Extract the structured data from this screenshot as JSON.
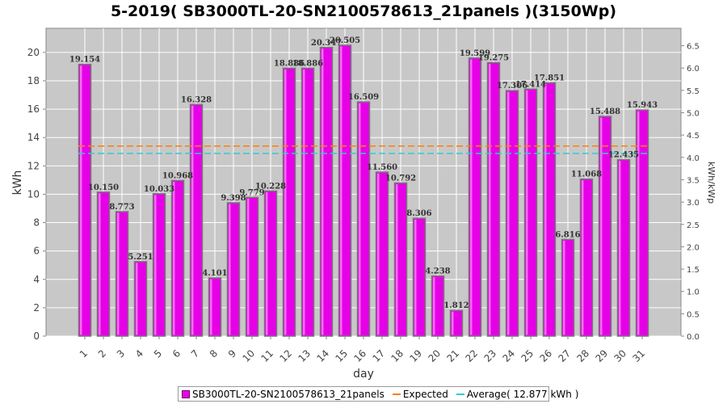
{
  "chart_data": {
    "type": "bar",
    "title": "5-2019( SB3000TL-20-SN2100578613_21panels )(3150Wp)",
    "xlabel": "day",
    "ylabel": "kWh",
    "y2label": "kWh/kWp",
    "ylim": [
      0,
      21.7
    ],
    "y2lim": [
      0,
      6.89
    ],
    "yticks": [
      0,
      2,
      4,
      6,
      8,
      10,
      12,
      14,
      16,
      18,
      20
    ],
    "y2ticks": [
      "0.0",
      "0.5",
      "1.0",
      "1.5",
      "2.0",
      "2.5",
      "3.0",
      "3.5",
      "4.0",
      "4.5",
      "5.0",
      "5.5",
      "6.0",
      "6.5"
    ],
    "grid": true,
    "legend_position": "bottom",
    "categories": [
      "1",
      "2",
      "3",
      "4",
      "5",
      "6",
      "7",
      "8",
      "9",
      "10",
      "11",
      "12",
      "13",
      "14",
      "15",
      "16",
      "17",
      "18",
      "19",
      "20",
      "21",
      "22",
      "23",
      "24",
      "25",
      "26",
      "27",
      "28",
      "29",
      "30",
      "31"
    ],
    "series": [
      {
        "name": "SB3000TL-20-SN2100578613_21panels",
        "color": "#e600e6",
        "values": [
          19.154,
          10.15,
          8.773,
          5.251,
          10.033,
          10.968,
          16.328,
          4.101,
          9.398,
          9.779,
          10.228,
          18.886,
          18.886,
          20.347,
          20.505,
          16.509,
          11.56,
          10.792,
          8.306,
          4.238,
          1.812,
          19.599,
          19.275,
          17.306,
          17.414,
          17.851,
          6.816,
          11.068,
          15.488,
          12.435,
          15.943
        ],
        "labels": [
          "19.154",
          "10.150",
          "8.773",
          "5.251",
          "10.033",
          "10.968",
          "16.328",
          "4.101",
          "9.398",
          "9.779",
          "10.228",
          "18.886",
          "18.886",
          "20.347",
          "20.505",
          "16.509",
          "11.560",
          "10.792",
          "8.306",
          "4.238",
          "1.812",
          "19.599",
          "19.275",
          "17.306",
          "17.414",
          "17.851",
          "6.816",
          "11.068",
          "15.488",
          "12.435",
          "15.943"
        ]
      }
    ],
    "lines": [
      {
        "name": "Expected",
        "value": 13.4,
        "color": "#ff8000"
      },
      {
        "name": "Average( 12.877 kWh )",
        "value": 12.877,
        "color": "#33cccc"
      }
    ]
  }
}
